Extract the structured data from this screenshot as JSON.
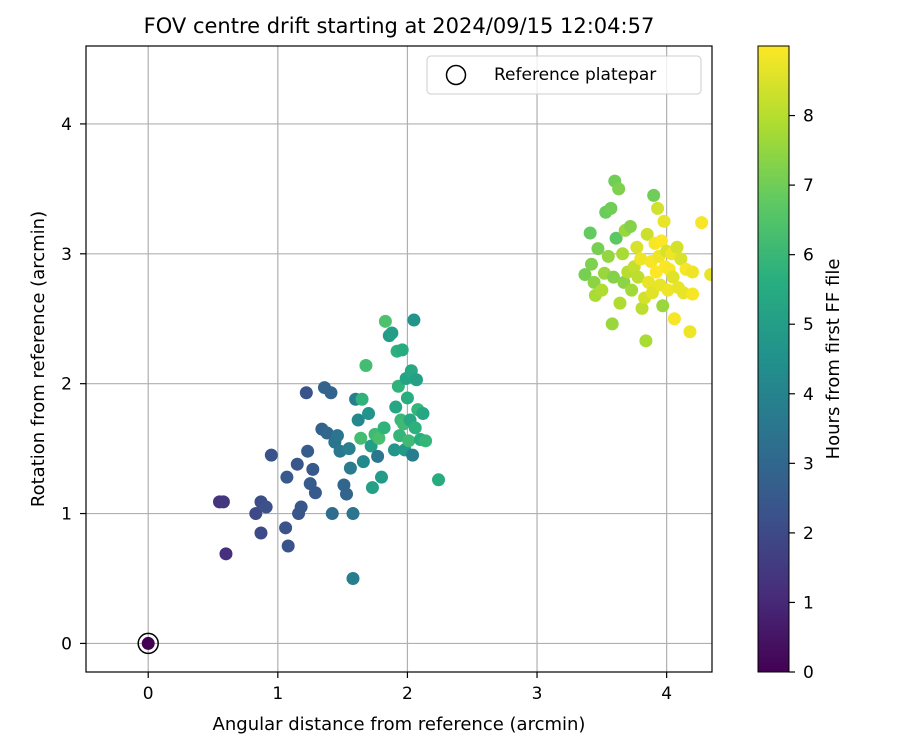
{
  "chart_data": {
    "type": "scatter",
    "title": "FOV centre drift starting at 2024/09/15 12:04:57",
    "xlabel": "Angular distance from reference (arcmin)",
    "ylabel": "Rotation from reference (arcmin)",
    "xlim": [
      -0.48,
      4.35
    ],
    "ylim": [
      -0.22,
      4.6
    ],
    "xticks": [
      0,
      1,
      2,
      3,
      4
    ],
    "yticks": [
      0,
      1,
      2,
      3,
      4
    ],
    "grid": true,
    "legend": {
      "position": "top-right",
      "entries": [
        "Reference platepar"
      ]
    },
    "reference_point": {
      "x": 0,
      "y": 0,
      "hours": 0,
      "label": "Reference platepar"
    },
    "colormap": "viridis",
    "colorbar": {
      "label": "Hours from first FF file",
      "min": 0,
      "max": 9,
      "ticks": [
        0,
        1,
        2,
        3,
        4,
        5,
        6,
        7,
        8
      ]
    },
    "points": [
      {
        "x": 0.55,
        "y": 1.09,
        "hours": 1.3
      },
      {
        "x": 0.58,
        "y": 1.09,
        "hours": 1.4
      },
      {
        "x": 0.6,
        "y": 0.69,
        "hours": 1.2
      },
      {
        "x": 0.83,
        "y": 1.0,
        "hours": 2.0
      },
      {
        "x": 0.87,
        "y": 0.85,
        "hours": 2.0
      },
      {
        "x": 0.87,
        "y": 1.09,
        "hours": 2.1
      },
      {
        "x": 0.91,
        "y": 1.05,
        "hours": 2.2
      },
      {
        "x": 0.95,
        "y": 1.45,
        "hours": 2.3
      },
      {
        "x": 1.06,
        "y": 0.89,
        "hours": 2.3
      },
      {
        "x": 1.07,
        "y": 1.28,
        "hours": 2.5
      },
      {
        "x": 1.08,
        "y": 0.75,
        "hours": 2.3
      },
      {
        "x": 1.15,
        "y": 1.38,
        "hours": 2.4
      },
      {
        "x": 1.16,
        "y": 1.0,
        "hours": 2.4
      },
      {
        "x": 1.18,
        "y": 1.05,
        "hours": 2.4
      },
      {
        "x": 1.22,
        "y": 1.93,
        "hours": 2.3
      },
      {
        "x": 1.23,
        "y": 1.48,
        "hours": 2.6
      },
      {
        "x": 1.25,
        "y": 1.23,
        "hours": 2.6
      },
      {
        "x": 1.27,
        "y": 1.34,
        "hours": 2.5
      },
      {
        "x": 1.29,
        "y": 1.16,
        "hours": 2.5
      },
      {
        "x": 1.34,
        "y": 1.65,
        "hours": 2.8
      },
      {
        "x": 1.36,
        "y": 1.97,
        "hours": 2.9
      },
      {
        "x": 1.38,
        "y": 1.62,
        "hours": 3.0
      },
      {
        "x": 1.41,
        "y": 1.93,
        "hours": 2.9
      },
      {
        "x": 1.42,
        "y": 1.0,
        "hours": 3.2
      },
      {
        "x": 1.44,
        "y": 1.55,
        "hours": 3.4
      },
      {
        "x": 1.46,
        "y": 1.6,
        "hours": 3.5
      },
      {
        "x": 1.48,
        "y": 1.48,
        "hours": 3.6
      },
      {
        "x": 1.51,
        "y": 1.22,
        "hours": 3.0
      },
      {
        "x": 1.53,
        "y": 1.15,
        "hours": 2.9
      },
      {
        "x": 1.55,
        "y": 1.5,
        "hours": 3.9
      },
      {
        "x": 1.56,
        "y": 1.35,
        "hours": 3.7
      },
      {
        "x": 1.58,
        "y": 1.0,
        "hours": 3.5
      },
      {
        "x": 1.58,
        "y": 0.5,
        "hours": 3.8
      },
      {
        "x": 1.6,
        "y": 1.88,
        "hours": 3.8
      },
      {
        "x": 1.62,
        "y": 1.72,
        "hours": 4.2
      },
      {
        "x": 1.64,
        "y": 1.58,
        "hours": 6.2
      },
      {
        "x": 1.65,
        "y": 1.88,
        "hours": 5.8
      },
      {
        "x": 1.66,
        "y": 1.4,
        "hours": 4.2
      },
      {
        "x": 1.68,
        "y": 2.14,
        "hours": 6.2
      },
      {
        "x": 1.7,
        "y": 1.77,
        "hours": 4.6
      },
      {
        "x": 1.72,
        "y": 1.52,
        "hours": 5.0
      },
      {
        "x": 1.73,
        "y": 1.2,
        "hours": 5.1
      },
      {
        "x": 1.75,
        "y": 1.61,
        "hours": 6.1
      },
      {
        "x": 1.77,
        "y": 1.44,
        "hours": 3.5
      },
      {
        "x": 1.78,
        "y": 1.58,
        "hours": 6.3
      },
      {
        "x": 1.8,
        "y": 1.28,
        "hours": 4.9
      },
      {
        "x": 1.82,
        "y": 1.66,
        "hours": 5.8
      },
      {
        "x": 1.83,
        "y": 2.48,
        "hours": 6.4
      },
      {
        "x": 1.86,
        "y": 2.37,
        "hours": 4.9
      },
      {
        "x": 1.88,
        "y": 2.39,
        "hours": 5.0
      },
      {
        "x": 1.9,
        "y": 1.49,
        "hours": 4.7
      },
      {
        "x": 1.91,
        "y": 1.82,
        "hours": 5.3
      },
      {
        "x": 1.92,
        "y": 2.25,
        "hours": 5.7
      },
      {
        "x": 1.93,
        "y": 1.98,
        "hours": 5.8
      },
      {
        "x": 1.94,
        "y": 1.6,
        "hours": 5.9
      },
      {
        "x": 1.95,
        "y": 1.72,
        "hours": 6.0
      },
      {
        "x": 1.96,
        "y": 2.26,
        "hours": 5.5
      },
      {
        "x": 1.97,
        "y": 1.69,
        "hours": 6.1
      },
      {
        "x": 1.98,
        "y": 1.49,
        "hours": 4.8
      },
      {
        "x": 1.99,
        "y": 2.04,
        "hours": 5.2
      },
      {
        "x": 2.0,
        "y": 1.89,
        "hours": 5.6
      },
      {
        "x": 2.01,
        "y": 1.56,
        "hours": 6.1
      },
      {
        "x": 2.02,
        "y": 1.72,
        "hours": 5.4
      },
      {
        "x": 2.03,
        "y": 2.1,
        "hours": 5.4
      },
      {
        "x": 2.04,
        "y": 1.45,
        "hours": 3.8
      },
      {
        "x": 2.05,
        "y": 2.49,
        "hours": 4.6
      },
      {
        "x": 2.06,
        "y": 1.66,
        "hours": 5.7
      },
      {
        "x": 2.07,
        "y": 2.03,
        "hours": 5.1
      },
      {
        "x": 2.08,
        "y": 1.8,
        "hours": 5.9
      },
      {
        "x": 2.1,
        "y": 1.57,
        "hours": 5.6
      },
      {
        "x": 2.12,
        "y": 1.77,
        "hours": 5.3
      },
      {
        "x": 2.14,
        "y": 1.56,
        "hours": 5.9
      },
      {
        "x": 2.24,
        "y": 1.26,
        "hours": 5.5
      },
      {
        "x": 3.37,
        "y": 2.84,
        "hours": 7.1
      },
      {
        "x": 3.41,
        "y": 3.16,
        "hours": 6.8
      },
      {
        "x": 3.42,
        "y": 2.92,
        "hours": 7.2
      },
      {
        "x": 3.44,
        "y": 2.78,
        "hours": 7.4
      },
      {
        "x": 3.45,
        "y": 2.68,
        "hours": 7.8
      },
      {
        "x": 3.47,
        "y": 3.04,
        "hours": 7.1
      },
      {
        "x": 3.5,
        "y": 2.72,
        "hours": 7.9
      },
      {
        "x": 3.52,
        "y": 2.85,
        "hours": 7.6
      },
      {
        "x": 3.53,
        "y": 3.32,
        "hours": 6.9
      },
      {
        "x": 3.55,
        "y": 2.98,
        "hours": 7.5
      },
      {
        "x": 3.57,
        "y": 3.35,
        "hours": 7.0
      },
      {
        "x": 3.58,
        "y": 2.46,
        "hours": 7.6
      },
      {
        "x": 3.59,
        "y": 2.82,
        "hours": 7.3
      },
      {
        "x": 3.6,
        "y": 3.56,
        "hours": 7.0
      },
      {
        "x": 3.61,
        "y": 3.12,
        "hours": 6.7
      },
      {
        "x": 3.63,
        "y": 3.5,
        "hours": 7.2
      },
      {
        "x": 3.64,
        "y": 2.62,
        "hours": 7.9
      },
      {
        "x": 3.66,
        "y": 3.0,
        "hours": 7.8
      },
      {
        "x": 3.67,
        "y": 2.78,
        "hours": 7.4
      },
      {
        "x": 3.68,
        "y": 3.18,
        "hours": 7.6
      },
      {
        "x": 3.7,
        "y": 2.86,
        "hours": 8.0
      },
      {
        "x": 3.72,
        "y": 3.21,
        "hours": 7.3
      },
      {
        "x": 3.73,
        "y": 2.72,
        "hours": 7.7
      },
      {
        "x": 3.75,
        "y": 2.9,
        "hours": 8.2
      },
      {
        "x": 3.77,
        "y": 3.05,
        "hours": 8.5
      },
      {
        "x": 3.78,
        "y": 2.82,
        "hours": 8.1
      },
      {
        "x": 3.8,
        "y": 2.96,
        "hours": 8.8
      },
      {
        "x": 3.81,
        "y": 2.58,
        "hours": 8.1
      },
      {
        "x": 3.83,
        "y": 2.66,
        "hours": 8.4
      },
      {
        "x": 3.84,
        "y": 2.33,
        "hours": 7.8
      },
      {
        "x": 3.85,
        "y": 3.15,
        "hours": 8.3
      },
      {
        "x": 3.86,
        "y": 2.78,
        "hours": 8.7
      },
      {
        "x": 3.88,
        "y": 2.94,
        "hours": 8.9
      },
      {
        "x": 3.89,
        "y": 2.7,
        "hours": 8.6
      },
      {
        "x": 3.9,
        "y": 3.45,
        "hours": 7.0
      },
      {
        "x": 3.91,
        "y": 3.08,
        "hours": 8.9
      },
      {
        "x": 3.92,
        "y": 2.86,
        "hours": 9.0
      },
      {
        "x": 3.93,
        "y": 3.35,
        "hours": 8.4
      },
      {
        "x": 3.94,
        "y": 2.98,
        "hours": 8.8
      },
      {
        "x": 3.95,
        "y": 2.76,
        "hours": 8.7
      },
      {
        "x": 3.96,
        "y": 3.1,
        "hours": 9.0
      },
      {
        "x": 3.97,
        "y": 2.6,
        "hours": 7.6
      },
      {
        "x": 3.98,
        "y": 3.25,
        "hours": 8.7
      },
      {
        "x": 3.99,
        "y": 2.9,
        "hours": 9.0
      },
      {
        "x": 4.0,
        "y": 3.02,
        "hours": 8.5
      },
      {
        "x": 4.01,
        "y": 2.72,
        "hours": 8.8
      },
      {
        "x": 4.02,
        "y": 2.88,
        "hours": 8.9
      },
      {
        "x": 4.04,
        "y": 3.0,
        "hours": 8.8
      },
      {
        "x": 4.05,
        "y": 2.82,
        "hours": 8.6
      },
      {
        "x": 4.06,
        "y": 2.5,
        "hours": 8.9
      },
      {
        "x": 4.08,
        "y": 3.05,
        "hours": 8.4
      },
      {
        "x": 4.09,
        "y": 2.74,
        "hours": 8.7
      },
      {
        "x": 4.11,
        "y": 2.96,
        "hours": 8.5
      },
      {
        "x": 4.13,
        "y": 2.7,
        "hours": 8.7
      },
      {
        "x": 4.15,
        "y": 2.88,
        "hours": 8.9
      },
      {
        "x": 4.18,
        "y": 2.4,
        "hours": 8.8
      },
      {
        "x": 4.2,
        "y": 2.69,
        "hours": 8.9
      },
      {
        "x": 4.2,
        "y": 2.86,
        "hours": 8.8
      },
      {
        "x": 4.27,
        "y": 3.24,
        "hours": 8.9
      },
      {
        "x": 4.34,
        "y": 2.84,
        "hours": 8.7
      }
    ]
  }
}
